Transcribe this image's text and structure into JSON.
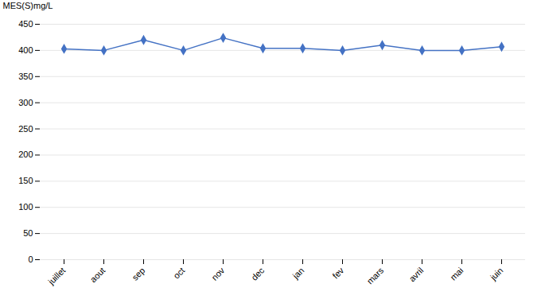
{
  "chart_data": {
    "type": "line",
    "ylabel": "MES(S)mg/L",
    "categories": [
      "juillet",
      "aout",
      "sep",
      "oct",
      "nov",
      "dec",
      "jan",
      "fev",
      "mars",
      "avril",
      "mai",
      "juin"
    ],
    "values": [
      403,
      400,
      420,
      400,
      424,
      404,
      404,
      400,
      410,
      400,
      400,
      407
    ],
    "color": "#4472C4",
    "marker": "diamond",
    "ylim": [
      0,
      450
    ],
    "yticks": [
      0,
      50,
      100,
      150,
      200,
      250,
      300,
      350,
      400,
      450
    ],
    "grid": true
  }
}
